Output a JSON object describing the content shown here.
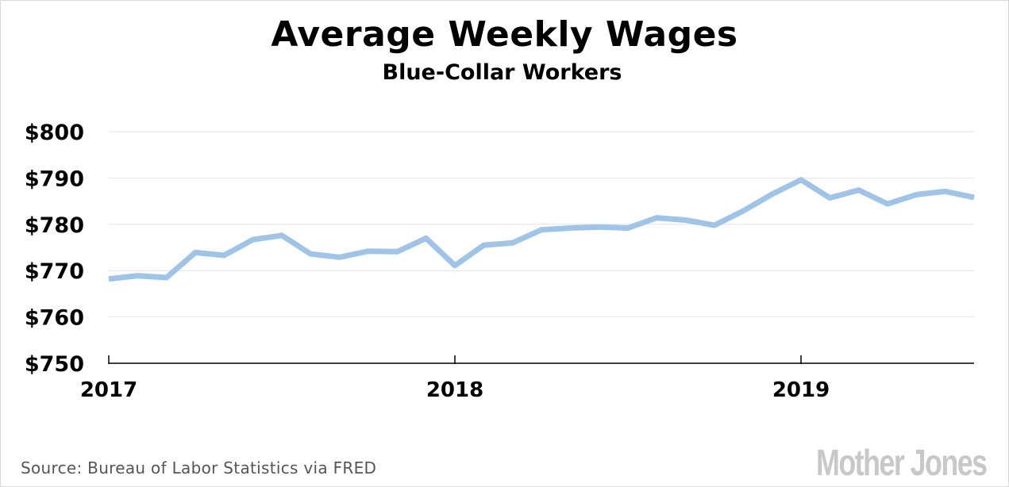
{
  "title": "Average Weekly Wages",
  "subtitle": "Blue-Collar Workers",
  "source": "Source: Bureau of Labor Statistics via FRED",
  "logo": "Mother Jones",
  "colors": {
    "line": "#a0c4e8",
    "grid": "#e3e3e3",
    "axis": "#000000"
  },
  "chart_data": {
    "type": "line",
    "title": "Average Weekly Wages",
    "subtitle": "Blue-Collar Workers",
    "xlabel": "",
    "ylabel": "",
    "ylim": [
      750,
      800
    ],
    "xlim": [
      "2017-01",
      "2019-07"
    ],
    "grid": true,
    "y_ticks": [
      750,
      760,
      770,
      780,
      790,
      800
    ],
    "y_tick_labels": [
      "$750",
      "$760",
      "$770",
      "$780",
      "$790",
      "$800"
    ],
    "x_ticks": [
      "2017-01",
      "2018-01",
      "2019-01"
    ],
    "x_tick_labels": [
      "2017",
      "2018",
      "2019"
    ],
    "series": [
      {
        "name": "",
        "x": [
          "2017-01",
          "2017-02",
          "2017-03",
          "2017-04",
          "2017-05",
          "2017-06",
          "2017-07",
          "2017-08",
          "2017-09",
          "2017-10",
          "2017-11",
          "2017-12",
          "2018-01",
          "2018-02",
          "2018-03",
          "2018-04",
          "2018-05",
          "2018-06",
          "2018-07",
          "2018-08",
          "2018-09",
          "2018-10",
          "2018-11",
          "2018-12",
          "2019-01",
          "2019-02",
          "2019-03",
          "2019-04",
          "2019-05",
          "2019-06",
          "2019-07"
        ],
        "values": [
          768.2,
          768.9,
          768.5,
          773.9,
          773.3,
          776.7,
          777.6,
          773.6,
          772.9,
          774.2,
          774.1,
          777.0,
          771.1,
          775.5,
          776.0,
          778.8,
          779.2,
          779.4,
          779.2,
          781.4,
          780.9,
          779.8,
          782.9,
          786.5,
          789.6,
          785.7,
          787.4,
          784.4,
          786.4,
          787.1,
          785.8
        ]
      }
    ]
  }
}
